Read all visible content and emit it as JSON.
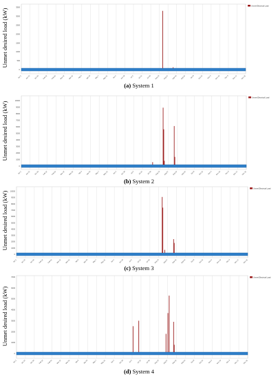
{
  "figure": {
    "bar_color": "#9b1c1c",
    "baseline_color": "#2f7fc9",
    "grid_color": "#dcdcdc"
  },
  "chart_data": [
    {
      "type": "bar",
      "letter": "(a)",
      "caption": " System 1",
      "ylabel": "Unmet desired load (kW)",
      "legend": "Unmet Electrical Load",
      "ylim": [
        0,
        3600
      ],
      "yticks": [
        "0",
        "500",
        "1000",
        "1500",
        "2000",
        "2500",
        "3000",
        "3500"
      ],
      "xticks": [
        "Jan 1",
        "Jan 15",
        "Jan 29",
        "Feb 12",
        "Feb 26",
        "Mar 12",
        "Mar 26",
        "Apr 9",
        "Apr 23",
        "May 7",
        "May 21",
        "Jun 4",
        "Jun 18",
        "Jul 2",
        "Jul 16",
        "Jul 30",
        "Aug 13",
        "Aug 27",
        "Sep 10",
        "Sep 24",
        "Oct 8",
        "Oct 22",
        "Nov 5",
        "Nov 19",
        "Dec 3",
        "Dec 17",
        "Dec 31"
      ],
      "points": [
        {
          "day": 230,
          "value": 3300
        },
        {
          "day": 247,
          "value": 130
        }
      ]
    },
    {
      "type": "bar",
      "letter": "(b)",
      "caption": " System 2",
      "ylabel": "Unmet desired load (kW)",
      "legend": "Unmet Electrical Load",
      "ylim": [
        0,
        10500
      ],
      "yticks": [
        "0",
        "1000",
        "2000",
        "3000",
        "4000",
        "5000",
        "6000",
        "7000",
        "8000",
        "9000",
        "10000"
      ],
      "xticks": [
        "Jan 1",
        "Jan 15",
        "Jan 29",
        "Feb 12",
        "Feb 26",
        "Mar 12",
        "Mar 26",
        "Apr 9",
        "Apr 23",
        "May 7",
        "May 21",
        "Jun 4",
        "Jun 18",
        "Jul 2",
        "Jul 16",
        "Jul 30",
        "Aug 13",
        "Aug 27",
        "Sep 10",
        "Sep 24",
        "Oct 8",
        "Oct 22",
        "Nov 5",
        "Nov 19",
        "Dec 3",
        "Dec 17",
        "Dec 31"
      ],
      "points": [
        {
          "day": 42,
          "value": 150
        },
        {
          "day": 213,
          "value": 600
        },
        {
          "day": 230,
          "value": 8900
        },
        {
          "day": 231,
          "value": 5600
        },
        {
          "day": 232,
          "value": 800
        },
        {
          "day": 248,
          "value": 6100
        },
        {
          "day": 249,
          "value": 1400
        }
      ]
    },
    {
      "type": "bar",
      "letter": "(c)",
      "caption": " System 3",
      "ylabel": "Unmet desired load (kW)",
      "legend": "Unmet Electrical Load",
      "ylim": [
        0,
        10500
      ],
      "yticks": [
        "0",
        "1000",
        "2000",
        "3000",
        "4000",
        "5000",
        "6000",
        "7000",
        "8000",
        "9000",
        "10000"
      ],
      "xticks": [
        "Jan 1",
        "Jan 15",
        "Jan 29",
        "Feb 12",
        "Feb 26",
        "Mar 12",
        "Mar 26",
        "Apr 9",
        "Apr 23",
        "May 7",
        "May 21",
        "Jun 4",
        "Jun 18",
        "Jul 2",
        "Jul 16",
        "Jul 30",
        "Aug 13",
        "Aug 27",
        "Sep 10",
        "Sep 24",
        "Oct 8",
        "Oct 22",
        "Nov 5",
        "Nov 19",
        "Dec 3",
        "Dec 17",
        "Dec 31"
      ],
      "points": [
        {
          "day": 230,
          "value": 9100
        },
        {
          "day": 231,
          "value": 7400
        },
        {
          "day": 234,
          "value": 700
        },
        {
          "day": 248,
          "value": 2400
        },
        {
          "day": 249,
          "value": 1800
        }
      ]
    },
    {
      "type": "bar",
      "letter": "(d)",
      "caption": " System 4",
      "ylabel": "Unmet desired load (kW)",
      "legend": "Unmet Electrical Load",
      "ylim": [
        0,
        7000
      ],
      "yticks": [
        "0",
        "1000",
        "2000",
        "3000",
        "4000",
        "5000",
        "6000",
        "7000"
      ],
      "xticks": [
        "Jan 1",
        "Jan 15",
        "Jan 29",
        "Feb 12",
        "Feb 26",
        "Mar 12",
        "Mar 26",
        "Apr 9",
        "Apr 23",
        "May 7",
        "May 21",
        "Jun 4",
        "Jun 18",
        "Jul 2",
        "Jul 16",
        "Jul 30",
        "Aug 13",
        "Aug 27",
        "Sep 10",
        "Sep 24",
        "Oct 8",
        "Oct 22",
        "Nov 5",
        "Nov 19",
        "Dec 3",
        "Dec 17",
        "Dec 31"
      ],
      "points": [
        {
          "day": 184,
          "value": 2500
        },
        {
          "day": 193,
          "value": 3000
        },
        {
          "day": 236,
          "value": 1800
        },
        {
          "day": 239,
          "value": 3700
        },
        {
          "day": 241,
          "value": 5300
        },
        {
          "day": 248,
          "value": 2900
        },
        {
          "day": 249,
          "value": 800
        }
      ]
    }
  ]
}
